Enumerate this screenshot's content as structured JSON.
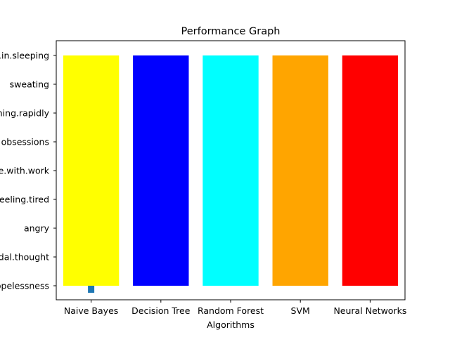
{
  "chart_data": {
    "type": "bar",
    "title": "Performance Graph",
    "xlabel": "Algorithms",
    "ylabel": "",
    "categories": [
      "Naive Bayes",
      "Decision Tree",
      "Random Forest",
      "SVM",
      "Neural Networks"
    ],
    "y_categories": [
      "hopelessness",
      "suicidal.thought",
      "angry",
      "feeling.tired",
      "trouble.with.work",
      "obsessions",
      "breathing.rapidly",
      "sweating",
      "trouble.in.sleeping"
    ],
    "values": [
      "trouble.in.sleeping",
      "trouble.in.sleeping",
      "trouble.in.sleeping",
      "trouble.in.sleeping",
      "trouble.in.sleeping"
    ],
    "bar_base": "hopelessness",
    "bar_colors": [
      "#ffff00",
      "#0000ff",
      "#00ffff",
      "#ffa500",
      "#ff0000"
    ],
    "marker": {
      "x": "Naive Bayes",
      "y": "hopelessness",
      "color": "#1f77b4"
    },
    "grid": false,
    "legend": "none"
  }
}
